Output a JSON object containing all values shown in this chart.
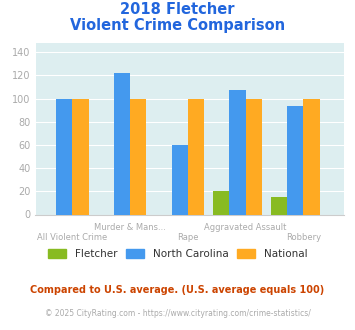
{
  "title_line1": "2018 Fletcher",
  "title_line2": "Violent Crime Comparison",
  "categories_top": [
    "All Violent Crime",
    "Murder & Mans...",
    "Rape",
    "Aggravated Assault",
    "Robbery"
  ],
  "categories_bottom": [
    "All Violent Crime",
    "",
    "Rape",
    "",
    "Robbery"
  ],
  "categories_top_labels": [
    "",
    "Murder & Mans...",
    "",
    "Aggravated Assault",
    ""
  ],
  "xtick_labels_row1": [
    "",
    "Murder & Mans...",
    "",
    "Aggravated Assault",
    ""
  ],
  "xtick_labels_row2": [
    "All Violent Crime",
    "",
    "Rape",
    "",
    "Robbery"
  ],
  "fletcher_values": [
    null,
    null,
    null,
    20,
    15
  ],
  "nc_values": [
    100,
    122,
    60,
    107,
    94
  ],
  "national_values": [
    100,
    100,
    100,
    100,
    100
  ],
  "fletcher_color": "#88bb22",
  "nc_color": "#4499ee",
  "national_color": "#ffaa22",
  "ylabel_ticks": [
    0,
    20,
    40,
    60,
    80,
    100,
    120,
    140
  ],
  "ylim": [
    0,
    148
  ],
  "bg_color": "#ddeef0",
  "title_color": "#2266dd",
  "footnote1": "Compared to U.S. average. (U.S. average equals 100)",
  "footnote2": "© 2025 CityRating.com - https://www.cityrating.com/crime-statistics/",
  "footnote1_color": "#cc4400",
  "footnote2_color": "#aaaaaa",
  "legend_text_color": "#333333",
  "tick_color": "#aaaaaa"
}
